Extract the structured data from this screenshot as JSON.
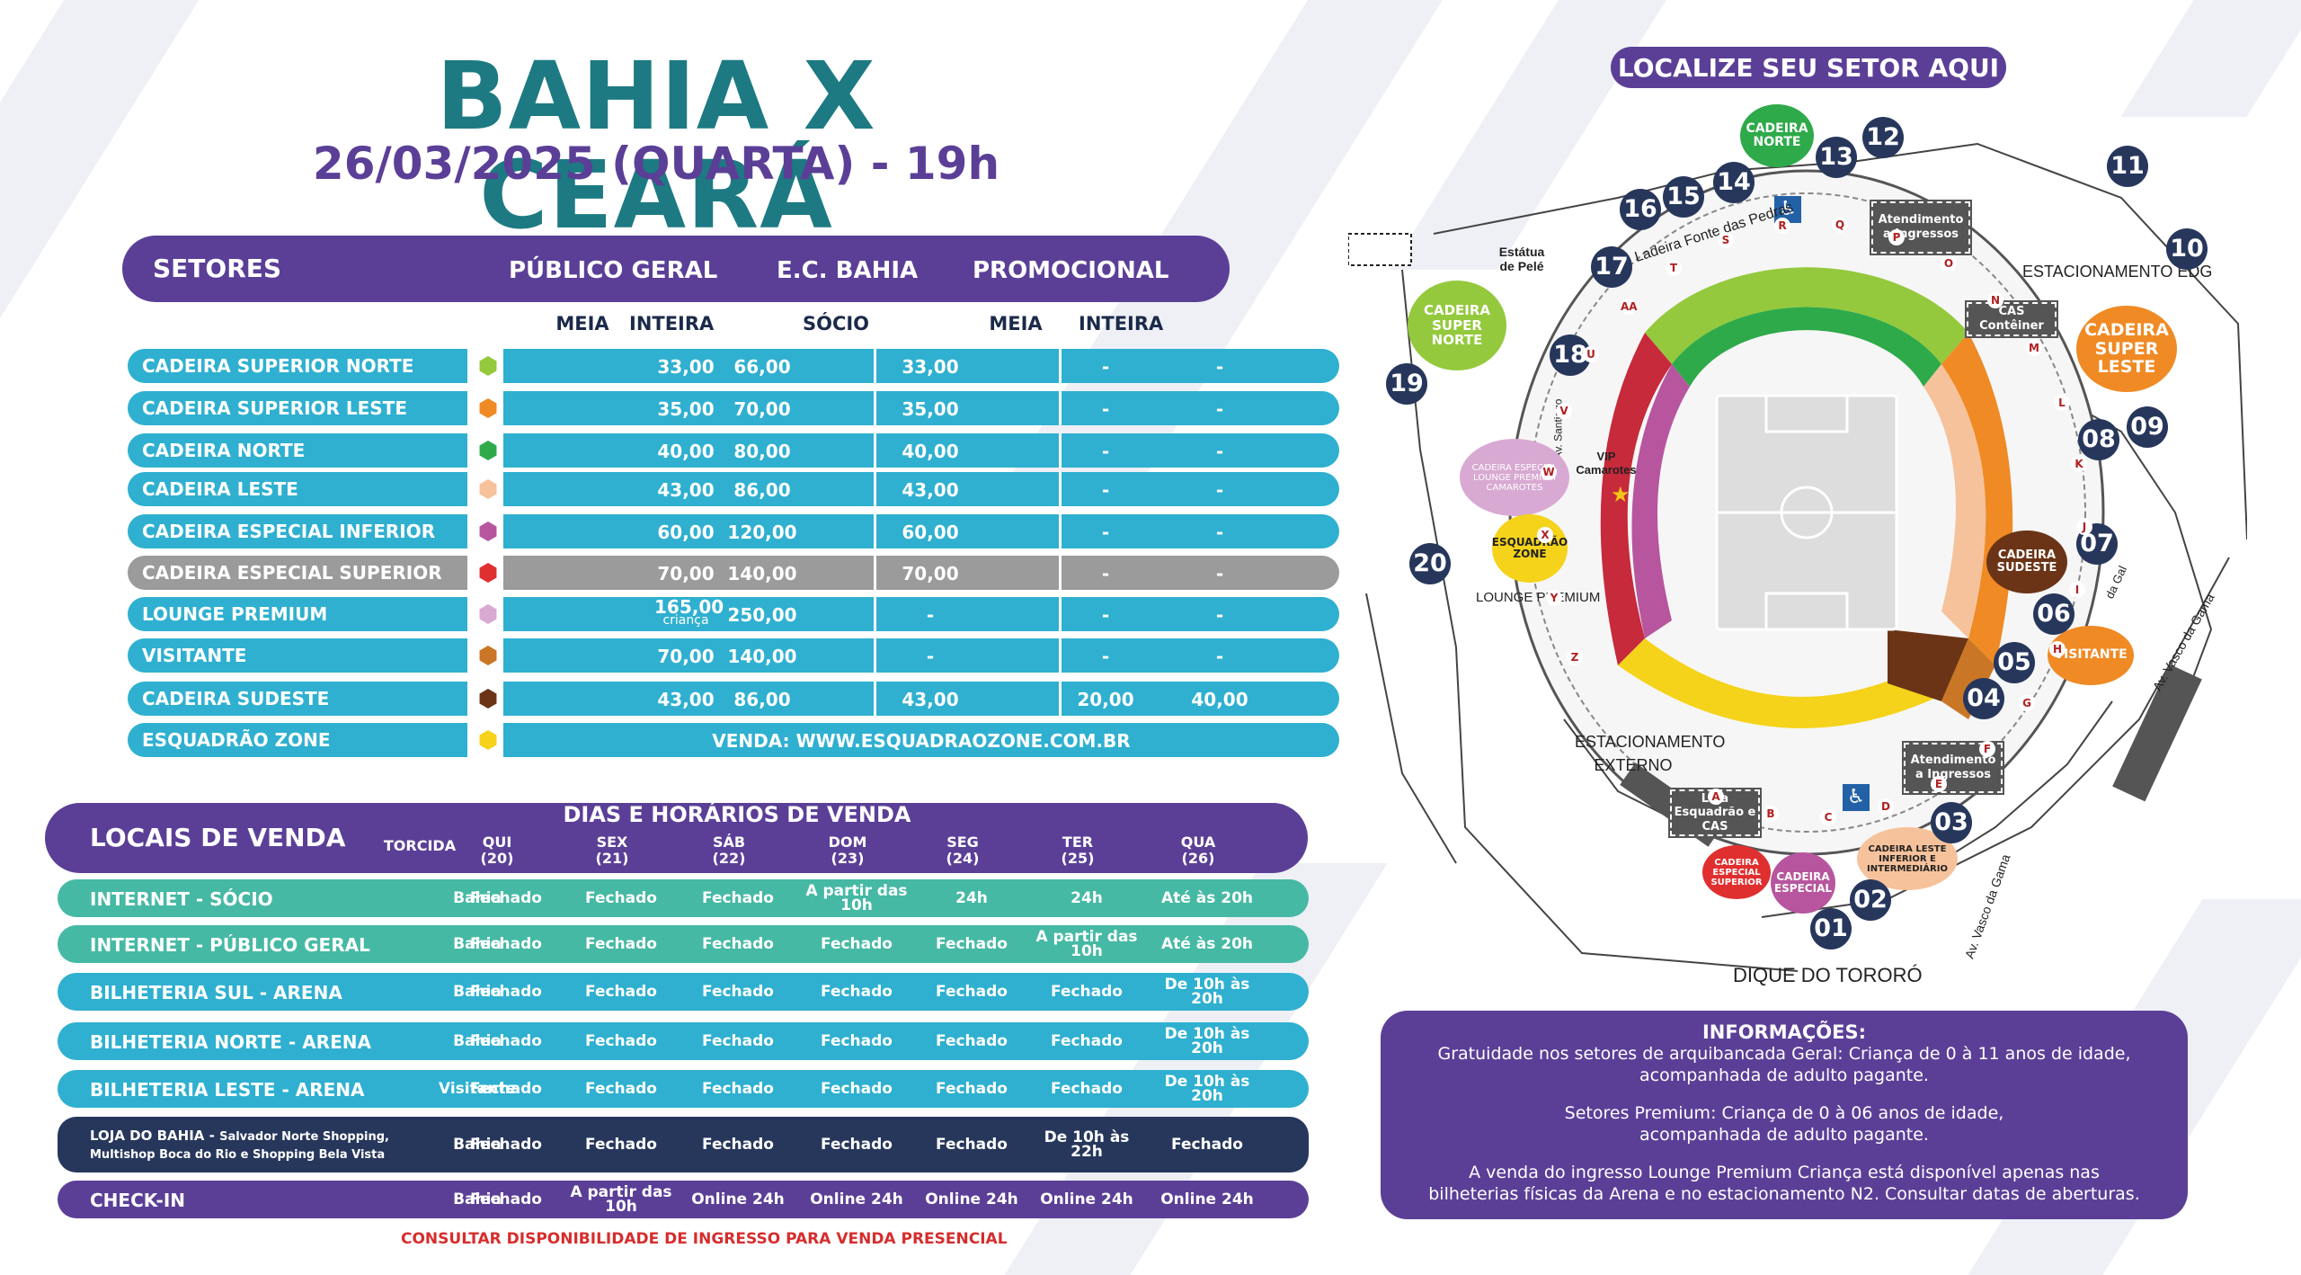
{
  "header": {
    "title": "BAHIA X CEARÁ",
    "subtitle": "26/03/2025 (QUARTA) - 19h"
  },
  "sectors": {
    "heading": "SETORES",
    "col_publico": "PÚBLICO GERAL",
    "col_ecbahia": "E.C. BAHIA",
    "col_promo": "PROMOCIONAL",
    "sub_meia": "MEIA",
    "sub_inteira": "INTEIRA",
    "sub_socio": "SÓCIO",
    "rows": [
      {
        "name": "CADEIRA SUPERIOR NORTE",
        "color": "#94c93d",
        "meia": "33,00",
        "inteira": "66,00",
        "socio": "33,00",
        "p_meia": "-",
        "p_inteira": "-"
      },
      {
        "name": "CADEIRA SUPERIOR LESTE",
        "color": "#f08a24",
        "meia": "35,00",
        "inteira": "70,00",
        "socio": "35,00",
        "p_meia": "-",
        "p_inteira": "-"
      },
      {
        "name": "CADEIRA NORTE",
        "color": "#2eaa4a",
        "meia": "40,00",
        "inteira": "80,00",
        "socio": "40,00",
        "p_meia": "-",
        "p_inteira": "-"
      },
      {
        "name": "CADEIRA LESTE",
        "color": "#f6c29b",
        "meia": "43,00",
        "inteira": "86,00",
        "socio": "43,00",
        "p_meia": "-",
        "p_inteira": "-"
      },
      {
        "name": "CADEIRA ESPECIAL INFERIOR",
        "color": "#b7569e",
        "meia": "60,00",
        "inteira": "120,00",
        "socio": "60,00",
        "p_meia": "-",
        "p_inteira": "-"
      },
      {
        "name": "CADEIRA ESPECIAL SUPERIOR",
        "color": "#e02f2f",
        "meia": "70,00",
        "inteira": "140,00",
        "socio": "70,00",
        "p_meia": "-",
        "p_inteira": "-",
        "grey": true
      },
      {
        "name": "LOUNGE PREMIUM",
        "color": "#d8a9d2",
        "meia": "165,00",
        "meia_note": "criança",
        "inteira": "250,00",
        "socio": "-",
        "p_meia": "-",
        "p_inteira": "-"
      },
      {
        "name": "VISITANTE",
        "color": "#c97726",
        "meia": "70,00",
        "inteira": "140,00",
        "socio": "-",
        "p_meia": "-",
        "p_inteira": "-"
      },
      {
        "name": "CADEIRA SUDESTE",
        "color": "#6b3416",
        "meia": "43,00",
        "inteira": "86,00",
        "socio": "43,00",
        "p_meia": "20,00",
        "p_inteira": "40,00"
      },
      {
        "name": "ESQUADRÃO ZONE",
        "color": "#f5d31b",
        "venda": "VENDA: WWW.ESQUADRAOZONE.COM.BR"
      }
    ]
  },
  "sales": {
    "title": "LOCAIS DE VENDA",
    "over": "DIAS E HORÁRIOS DE VENDA",
    "col_torcida": "TORCIDA",
    "days": [
      {
        "d": "QUI",
        "n": "(20)"
      },
      {
        "d": "SEX",
        "n": "(21)"
      },
      {
        "d": "SÁB",
        "n": "(22)"
      },
      {
        "d": "DOM",
        "n": "(23)"
      },
      {
        "d": "SEG",
        "n": "(24)"
      },
      {
        "d": "TER",
        "n": "(25)"
      },
      {
        "d": "QUA",
        "n": "(26)"
      }
    ],
    "rows": [
      {
        "label": "INTERNET - SÓCIO",
        "torcida": "Bahia",
        "vals": [
          "Fechado",
          "Fechado",
          "Fechado",
          "A partir das 10h",
          "24h",
          "24h",
          "Até às 20h"
        ],
        "color": "#46b9a4"
      },
      {
        "label": "INTERNET - PÚBLICO GERAL",
        "torcida": "Bahia",
        "vals": [
          "Fechado",
          "Fechado",
          "Fechado",
          "Fechado",
          "Fechado",
          "A partir das 10h",
          "Até às 20h"
        ],
        "color": "#46b9a4"
      },
      {
        "label": "BILHETERIA SUL - ARENA",
        "torcida": "Bahia",
        "vals": [
          "Fechado",
          "Fechado",
          "Fechado",
          "Fechado",
          "Fechado",
          "Fechado",
          "De 10h às 20h"
        ],
        "color": "#2fb0d0"
      },
      {
        "label": "BILHETERIA NORTE - ARENA",
        "torcida": "Bahia",
        "vals": [
          "Fechado",
          "Fechado",
          "Fechado",
          "Fechado",
          "Fechado",
          "Fechado",
          "De 10h às 20h"
        ],
        "color": "#2fb0d0"
      },
      {
        "label": "BILHETERIA LESTE - ARENA",
        "torcida": "Visitante",
        "vals": [
          "Fechado",
          "Fechado",
          "Fechado",
          "Fechado",
          "Fechado",
          "Fechado",
          "De 10h às 20h"
        ],
        "color": "#2fb0d0"
      },
      {
        "label": "LOJA DO BAHIA",
        "label_sub": "Salvador Norte Shopping, Multishop Boca do Rio e Shopping Bela Vista",
        "torcida": "Bahia",
        "vals": [
          "Fechado",
          "Fechado",
          "Fechado",
          "Fechado",
          "Fechado",
          "De 10h às 22h",
          "Fechado"
        ],
        "color": "#27375c"
      },
      {
        "label": "CHECK-IN",
        "torcida": "Bahia",
        "vals": [
          "Fechado",
          "A partir das 10h",
          "Online 24h",
          "Online 24h",
          "Online 24h",
          "Online 24h",
          "Online 24h"
        ],
        "color": "#5b3f97"
      }
    ],
    "consult": "CONSULTAR DISPONIBILIDADE DE INGRESSO PARA VENDA PRESENCIAL"
  },
  "info": {
    "heading": "INFORMAÇÕES:",
    "p1": "Gratuidade nos setores de arquibancada Geral: Criança de 0  à 11 anos de idade,",
    "p1b": "acompanhada de adulto pagante.",
    "p2": "Setores Premium: Criança de 0 à 06 anos de idade,",
    "p2b": "acompanhada de adulto pagante.",
    "p3": "A venda do ingresso Lounge Premium Criança está disponível apenas nas",
    "p3b": "bilheterias físicas da Arena e no estacionamento N2. Consultar datas de aberturas."
  },
  "map": {
    "title": "LOCALIZE SEU SETOR AQUI",
    "gates": [
      "01",
      "02",
      "03",
      "04",
      "05",
      "06",
      "07",
      "08",
      "09",
      "10",
      "11",
      "12",
      "13",
      "14",
      "15",
      "16",
      "17",
      "18",
      "19",
      "20"
    ],
    "labels": {
      "estatua": "Estátua de Pelé",
      "ladeira": "Ladeira Fonte das Pedras",
      "atend1": "Atendimento a Ingressos",
      "atend2": "Atendimento a Ingressos",
      "estac_edg": "ESTACIONAMENTO EDG",
      "cas": "CAS Contêiner",
      "vip": "VIP Camarotes",
      "lounge": "LOUNGE PREMIUM",
      "estac_ext": "ESTACIONAMENTO EXTERNO",
      "loja": "Loja Esquadrão e CAS",
      "dique": "DIQUE DO TORORÓ",
      "vasco1": "Av. Vasco da Gama",
      "vasco2": "Av. Vasco da Gama",
      "santiago": "Av. Santiago",
      "gal": "da Gal"
    },
    "bubbles": {
      "cad_norte": "CADEIRA NORTE",
      "super_norte": "CADEIRA SUPER NORTE",
      "super_leste": "CADEIRA SUPER LESTE",
      "esp_lounge": "CADEIRA ESPECIAL LOUNGE PREMIUM CAMAROTES",
      "esq_zone": "ESQUADRÃO ZONE",
      "sudeste": "CADEIRA SUDESTE",
      "visitante": "VISITANTE",
      "leste_inf": "CADEIRA LESTE INFERIOR E INTERMEDIÁRIO",
      "especial": "CADEIRA ESPECIAL",
      "esp_superior": "CADEIRA ESPECIAL SUPERIOR"
    },
    "letters": [
      "A",
      "B",
      "C",
      "D",
      "E",
      "F",
      "G",
      "H",
      "I",
      "J",
      "K",
      "L",
      "M",
      "N",
      "O",
      "P",
      "Q",
      "R",
      "S",
      "T",
      "AA",
      "U",
      "V",
      "W",
      "X",
      "Y",
      "Z"
    ]
  }
}
